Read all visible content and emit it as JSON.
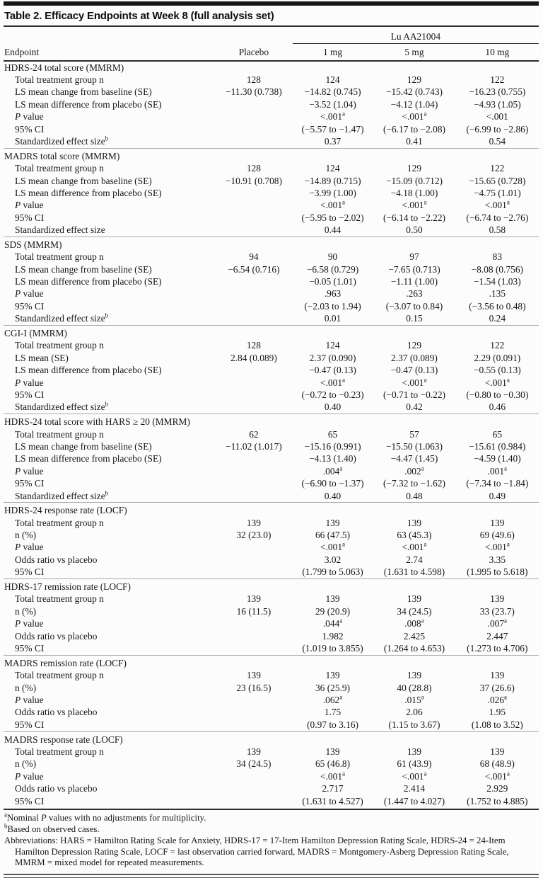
{
  "title": "Table 2. Efficacy Endpoints at Week 8 (full analysis set)",
  "table": {
    "header": {
      "endpoint_label": "Endpoint",
      "placebo_label": "Placebo",
      "group_label": "Lu AA21004",
      "dose_labels": [
        "1 mg",
        "5 mg",
        "10 mg"
      ]
    },
    "sections": [
      {
        "name": "HDRS-24 total score (MMRM)",
        "rows": [
          {
            "label": "Total treatment group n",
            "values": [
              "128",
              "124",
              "129",
              "122"
            ]
          },
          {
            "label": "LS mean change from baseline (SE)",
            "values": [
              "−11.30 (0.738)",
              "−14.82 (0.745)",
              "−15.42 (0.743)",
              "−16.23 (0.755)"
            ]
          },
          {
            "label": "LS mean difference from placebo (SE)",
            "values": [
              "",
              "−3.52 (1.04)",
              "−4.12 (1.04)",
              "−4.93 (1.05)"
            ]
          },
          {
            "label": "*P* value",
            "values": [
              "",
              "<.001^a",
              "<.001^a",
              "<.001"
            ]
          },
          {
            "label": "95% CI",
            "values": [
              "",
              "(−5.57 to −1.47)",
              "(−6.17 to −2.08)",
              "(−6.99 to −2.86)"
            ]
          },
          {
            "label": "Standardized effect size^b",
            "values": [
              "",
              "0.37",
              "0.41",
              "0.54"
            ]
          }
        ]
      },
      {
        "name": "MADRS total score (MMRM)",
        "rows": [
          {
            "label": "Total treatment group n",
            "values": [
              "128",
              "124",
              "129",
              "122"
            ]
          },
          {
            "label": "LS mean change from baseline (SE)",
            "values": [
              "−10.91 (0.708)",
              "−14.89 (0.715)",
              "−15.09 (0.712)",
              "−15.65 (0.728)"
            ]
          },
          {
            "label": "LS mean difference from placebo (SE)",
            "values": [
              "",
              "−3.99 (1.00)",
              "−4.18 (1.00)",
              "−4.75 (1.01)"
            ]
          },
          {
            "label": "*P* value",
            "values": [
              "",
              "<.001^a",
              "<.001^a",
              "<.001^a"
            ]
          },
          {
            "label": "95% CI",
            "values": [
              "",
              "(−5.95 to −2.02)",
              "(−6.14 to −2.22)",
              "(−6.74 to −2.76)"
            ]
          },
          {
            "label": "Standardized effect size",
            "values": [
              "",
              "0.44",
              "0.50",
              "0.58"
            ]
          }
        ]
      },
      {
        "name": "SDS (MMRM)",
        "rows": [
          {
            "label": "Total treatment group n",
            "values": [
              "94",
              "90",
              "97",
              "83"
            ]
          },
          {
            "label": "LS mean change from baseline (SE)",
            "values": [
              "−6.54 (0.716)",
              "−6.58 (0.729)",
              "−7.65 (0.713)",
              "−8.08 (0.756)"
            ]
          },
          {
            "label": "LS mean difference from placebo (SE)",
            "values": [
              "",
              "−0.05 (1.01)",
              "−1.11 (1.00)",
              "−1.54 (1.03)"
            ]
          },
          {
            "label": "*P* value",
            "values": [
              "",
              ".963",
              ".263",
              ".135"
            ]
          },
          {
            "label": "95% CI",
            "values": [
              "",
              "(−2.03 to 1.94)",
              "(−3.07 to 0.84)",
              "(−3.56 to 0.48)"
            ]
          },
          {
            "label": "Standardized effect size^b",
            "values": [
              "",
              "0.01",
              "0.15",
              "0.24"
            ]
          }
        ]
      },
      {
        "name": "CGI-I (MMRM)",
        "rows": [
          {
            "label": "Total treatment group n",
            "values": [
              "128",
              "124",
              "129",
              "122"
            ]
          },
          {
            "label": "LS mean (SE)",
            "values": [
              "2.84 (0.089)",
              "2.37 (0.090)",
              "2.37 (0.089)",
              "2.29 (0.091)"
            ]
          },
          {
            "label": "LS mean difference from placebo (SE)",
            "values": [
              "",
              "−0.47 (0.13)",
              "−0.47 (0.13)",
              "−0.55 (0.13)"
            ]
          },
          {
            "label": "*P* value",
            "values": [
              "",
              "<.001^a",
              "<.001^a",
              "<.001^a"
            ]
          },
          {
            "label": "95% CI",
            "values": [
              "",
              "(−0.72 to −0.23)",
              "(−0.71 to −0.22)",
              "(−0.80 to −0.30)"
            ]
          },
          {
            "label": "Standardized effect size^b",
            "values": [
              "",
              "0.40",
              "0.42",
              "0.46"
            ]
          }
        ]
      },
      {
        "name": "HDRS-24 total score with HARS ≥ 20 (MMRM)",
        "rows": [
          {
            "label": "Total treatment group n",
            "values": [
              "62",
              "65",
              "57",
              "65"
            ]
          },
          {
            "label": "LS mean change from baseline (SE)",
            "values": [
              "−11.02 (1.017)",
              "−15.16 (0.991)",
              "−15.50 (1.063)",
              "−15.61 (0.984)"
            ]
          },
          {
            "label": "LS mean difference from placebo (SE)",
            "values": [
              "",
              "−4.13 (1.40)",
              "−4.47 (1.45)",
              "−4.59 (1.40)"
            ]
          },
          {
            "label": "*P* value",
            "values": [
              "",
              ".004^a",
              ".002^a",
              ".001^a"
            ]
          },
          {
            "label": "95% CI",
            "values": [
              "",
              "(−6.90 to −1.37)",
              "(−7.32 to −1.62)",
              "(−7.34 to −1.84)"
            ]
          },
          {
            "label": "Standardized effect size^b",
            "values": [
              "",
              "0.40",
              "0.48",
              "0.49"
            ]
          }
        ]
      },
      {
        "name": "HDRS-24 response rate (LOCF)",
        "rows": [
          {
            "label": "Total treatment group n",
            "values": [
              "139",
              "139",
              "139",
              "139"
            ]
          },
          {
            "label": "n (%)",
            "values": [
              "32 (23.0)",
              "66 (47.5)",
              "63 (45.3)",
              "69 (49.6)"
            ]
          },
          {
            "label": "*P* value",
            "values": [
              "",
              "<.001^a",
              "<.001^a",
              "<.001^a"
            ]
          },
          {
            "label": "Odds ratio vs placebo",
            "values": [
              "",
              "3.02",
              "2.74",
              "3.35"
            ]
          },
          {
            "label": "95% CI",
            "values": [
              "",
              "(1.799 to 5.063)",
              "(1.631 to 4.598)",
              "(1.995 to 5.618)"
            ]
          }
        ]
      },
      {
        "name": "HDRS-17 remission rate (LOCF)",
        "rows": [
          {
            "label": "Total treatment group n",
            "values": [
              "139",
              "139",
              "139",
              "139"
            ]
          },
          {
            "label": "n (%)",
            "values": [
              "16 (11.5)",
              "29 (20.9)",
              "34 (24.5)",
              "33 (23.7)"
            ]
          },
          {
            "label": "*P* value",
            "values": [
              "",
              ".044^a",
              ".008^a",
              ".007^a"
            ]
          },
          {
            "label": "Odds ratio vs placebo",
            "values": [
              "",
              "1.982",
              "2.425",
              "2.447"
            ]
          },
          {
            "label": "95% CI",
            "values": [
              "",
              "(1.019 to 3.855)",
              "(1.264 to 4.653)",
              "(1.273 to 4.706)"
            ]
          }
        ]
      },
      {
        "name": "MADRS remission rate (LOCF)",
        "rows": [
          {
            "label": "Total treatment group n",
            "values": [
              "139",
              "139",
              "139",
              "139"
            ]
          },
          {
            "label": "n (%)",
            "values": [
              "23 (16.5)",
              "36 (25.9)",
              "40 (28.8)",
              "37 (26.6)"
            ]
          },
          {
            "label": "*P* value",
            "values": [
              "",
              ".062^a",
              ".015^a",
              ".026^a"
            ]
          },
          {
            "label": "Odds ratio vs placebo",
            "values": [
              "",
              "1.75",
              "2.06",
              "1.95"
            ]
          },
          {
            "label": "95% CI",
            "values": [
              "",
              "(0.97 to 3.16)",
              "(1.15 to 3.67)",
              "(1.08 to 3.52)"
            ]
          }
        ]
      },
      {
        "name": "MADRS response rate (LOCF)",
        "rows": [
          {
            "label": "Total treatment group n",
            "values": [
              "139",
              "139",
              "139",
              "139"
            ]
          },
          {
            "label": "n (%)",
            "values": [
              "34 (24.5)",
              "65 (46.8)",
              "61 (43.9)",
              "68 (48.9)"
            ]
          },
          {
            "label": "*P* value",
            "values": [
              "",
              "<.001^a",
              "<.001^a",
              "<.001^a"
            ]
          },
          {
            "label": "Odds ratio vs placebo",
            "values": [
              "",
              "2.717",
              "2.414",
              "2.929"
            ]
          },
          {
            "label": "95% CI",
            "values": [
              "",
              "(1.631 to 4.527)",
              "(1.447 to 4.027)",
              "(1.752 to 4.885)"
            ]
          }
        ]
      }
    ]
  },
  "footnotes": [
    "^aNominal *P* values with no adjustments for multiplicity.",
    "^bBased on observed cases.",
    "Abbreviations: HARS = Hamilton Rating Scale for Anxiety, HDRS-17 = 17-Item Hamilton Depression Rating Scale, HDRS-24 = 24-Item Hamilton Depression Rating Scale, LOCF = last observation carried forward, MADRS = Montgomery-Asberg Depression Rating Scale, MMRM = mixed model for repeated measurements."
  ]
}
